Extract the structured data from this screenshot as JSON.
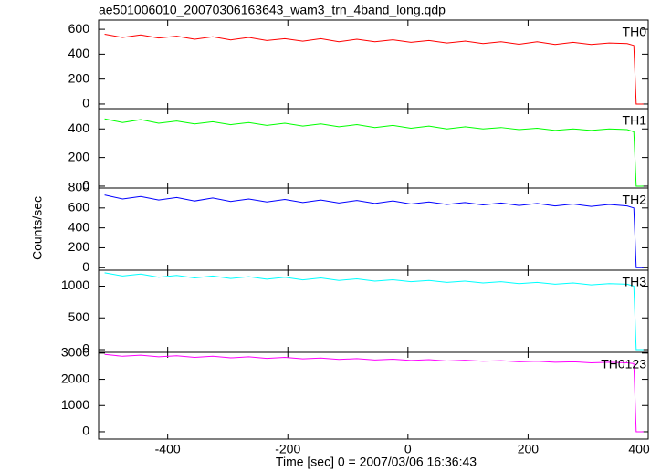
{
  "chart_data": [
    {
      "type": "line",
      "title": "ae501006010_20070306163643_wam3_trn_4band_long.qdp",
      "x": [
        -505,
        -475,
        -445,
        -415,
        -385,
        -355,
        -325,
        -295,
        -265,
        -235,
        -205,
        -175,
        -145,
        -115,
        -85,
        -55,
        -25,
        5,
        35,
        65,
        95,
        125,
        155,
        185,
        215,
        245,
        275,
        305,
        335,
        365,
        376,
        380,
        392
      ],
      "series": [
        {
          "name": "TH0",
          "color": "#ff0000",
          "values": [
            560,
            535,
            555,
            530,
            545,
            520,
            540,
            515,
            535,
            510,
            525,
            505,
            525,
            500,
            520,
            500,
            515,
            495,
            510,
            490,
            505,
            485,
            500,
            480,
            500,
            478,
            495,
            478,
            490,
            485,
            470,
            0,
            0
          ]
        }
      ],
      "xlim": [
        -515,
        400
      ],
      "ylim": [
        -37,
        674
      ],
      "yticks": [
        0,
        200,
        400,
        600
      ]
    },
    {
      "type": "line",
      "x": [
        -505,
        -475,
        -445,
        -415,
        -385,
        -355,
        -325,
        -295,
        -265,
        -235,
        -205,
        -175,
        -145,
        -115,
        -85,
        -55,
        -25,
        5,
        35,
        65,
        95,
        125,
        155,
        185,
        215,
        245,
        275,
        305,
        335,
        365,
        376,
        380,
        392
      ],
      "series": [
        {
          "name": "TH1",
          "color": "#00ff00",
          "values": [
            470,
            445,
            465,
            440,
            455,
            435,
            450,
            430,
            445,
            425,
            440,
            420,
            435,
            415,
            430,
            410,
            425,
            405,
            420,
            400,
            415,
            400,
            410,
            395,
            405,
            390,
            400,
            390,
            400,
            395,
            380,
            0,
            0
          ]
        }
      ],
      "xlim": [
        -515,
        400
      ],
      "ylim": [
        -13,
        542
      ],
      "yticks": [
        0,
        200,
        400
      ]
    },
    {
      "type": "line",
      "ylabel": "Counts/sec",
      "x": [
        -505,
        -475,
        -445,
        -415,
        -385,
        -355,
        -325,
        -295,
        -265,
        -235,
        -205,
        -175,
        -145,
        -115,
        -85,
        -55,
        -25,
        5,
        35,
        65,
        95,
        125,
        155,
        185,
        215,
        245,
        275,
        305,
        335,
        365,
        376,
        380,
        392
      ],
      "series": [
        {
          "name": "TH2",
          "color": "#0000ff",
          "values": [
            730,
            690,
            715,
            680,
            705,
            670,
            700,
            665,
            690,
            660,
            685,
            655,
            680,
            650,
            675,
            645,
            670,
            640,
            660,
            635,
            655,
            630,
            650,
            625,
            645,
            620,
            640,
            615,
            635,
            620,
            600,
            0,
            0
          ]
        }
      ],
      "xlim": [
        -515,
        400
      ],
      "ylim": [
        -25,
        800
      ],
      "yticks": [
        0,
        200,
        400,
        600,
        800
      ]
    },
    {
      "type": "line",
      "x": [
        -505,
        -475,
        -445,
        -415,
        -385,
        -355,
        -325,
        -295,
        -265,
        -235,
        -205,
        -175,
        -145,
        -115,
        -85,
        -55,
        -25,
        5,
        35,
        65,
        95,
        125,
        155,
        185,
        215,
        245,
        275,
        305,
        335,
        365,
        376,
        380,
        392
      ],
      "series": [
        {
          "name": "TH3",
          "color": "#00ffff",
          "values": [
            1210,
            1160,
            1190,
            1140,
            1170,
            1130,
            1160,
            1120,
            1150,
            1110,
            1140,
            1100,
            1130,
            1090,
            1115,
            1080,
            1100,
            1070,
            1090,
            1060,
            1080,
            1050,
            1070,
            1040,
            1060,
            1030,
            1050,
            1020,
            1040,
            1030,
            1000,
            0,
            0
          ]
        }
      ],
      "xlim": [
        -515,
        400
      ],
      "ylim": [
        -43,
        1252
      ],
      "yticks": [
        0,
        500,
        1000
      ]
    },
    {
      "type": "line",
      "xlabel": "Time [sec] 0 = 2007/03/06 16:36:43",
      "x": [
        -505,
        -475,
        -445,
        -415,
        -385,
        -355,
        -325,
        -295,
        -265,
        -235,
        -205,
        -175,
        -145,
        -115,
        -85,
        -55,
        -25,
        5,
        35,
        65,
        95,
        125,
        155,
        185,
        215,
        245,
        275,
        305,
        335,
        365,
        376,
        380,
        392
      ],
      "series": [
        {
          "name": "TH0123",
          "color": "#ff00ff",
          "values": [
            2950,
            2880,
            2920,
            2860,
            2900,
            2840,
            2880,
            2820,
            2860,
            2800,
            2840,
            2780,
            2810,
            2760,
            2790,
            2740,
            2770,
            2720,
            2750,
            2700,
            2730,
            2690,
            2710,
            2670,
            2690,
            2650,
            2670,
            2630,
            2650,
            2630,
            2600,
            0,
            0
          ]
        }
      ],
      "xlim": [
        -515,
        400
      ],
      "ylim": [
        -280,
        3030
      ],
      "yticks": [
        0,
        1000,
        2000,
        3000
      ],
      "xticks": [
        -400,
        -200,
        0,
        200,
        400
      ]
    }
  ]
}
